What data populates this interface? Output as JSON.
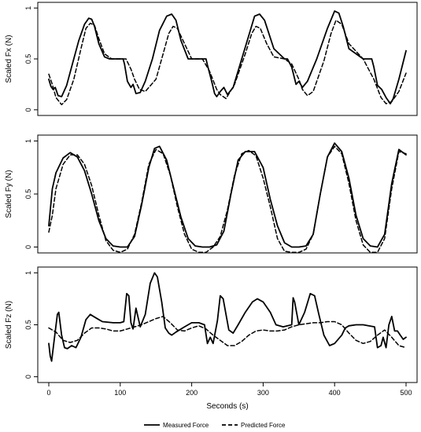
{
  "chart_data": [
    {
      "type": "line",
      "ylabel": "Scaled Fx (N)",
      "xlabel": "",
      "xlim": [
        0,
        500
      ],
      "ylim": [
        0,
        1
      ],
      "yticks": [
        "0",
        "0.5",
        "1"
      ],
      "xticks": [],
      "series": [
        {
          "name": "Measured Force",
          "style": "solid",
          "x": [
            0,
            3,
            6,
            9,
            13,
            18,
            25,
            33,
            42,
            50,
            56,
            60,
            64,
            70,
            78,
            85,
            95,
            104,
            106,
            110,
            115,
            118,
            122,
            128,
            135,
            145,
            155,
            165,
            172,
            178,
            185,
            195,
            210,
            220,
            222,
            228,
            232,
            235,
            240,
            245,
            250,
            258,
            270,
            282,
            288,
            295,
            302,
            315,
            330,
            334,
            340,
            346,
            350,
            355,
            362,
            375,
            390,
            400,
            406,
            412,
            420,
            440,
            452,
            455,
            460,
            466,
            472,
            478,
            482,
            490,
            500
          ],
          "y": [
            0.3,
            0.23,
            0.2,
            0.22,
            0.14,
            0.13,
            0.24,
            0.45,
            0.68,
            0.84,
            0.9,
            0.89,
            0.82,
            0.65,
            0.52,
            0.5,
            0.5,
            0.5,
            0.45,
            0.28,
            0.22,
            0.25,
            0.16,
            0.17,
            0.28,
            0.5,
            0.78,
            0.92,
            0.94,
            0.88,
            0.68,
            0.5,
            0.5,
            0.5,
            0.44,
            0.28,
            0.16,
            0.13,
            0.18,
            0.22,
            0.15,
            0.22,
            0.5,
            0.78,
            0.92,
            0.94,
            0.88,
            0.6,
            0.5,
            0.5,
            0.42,
            0.25,
            0.28,
            0.22,
            0.28,
            0.5,
            0.8,
            0.97,
            0.95,
            0.82,
            0.6,
            0.5,
            0.5,
            0.42,
            0.24,
            0.2,
            0.12,
            0.06,
            0.11,
            0.3,
            0.58
          ]
        },
        {
          "name": "Predicted Force",
          "style": "dashed",
          "x": [
            0,
            5,
            10,
            18,
            25,
            35,
            45,
            52,
            58,
            64,
            70,
            78,
            88,
            100,
            108,
            115,
            120,
            127,
            135,
            150,
            160,
            168,
            174,
            180,
            190,
            200,
            215,
            225,
            235,
            240,
            248,
            260,
            275,
            284,
            290,
            296,
            305,
            315,
            330,
            340,
            350,
            355,
            362,
            370,
            385,
            395,
            402,
            410,
            420,
            440,
            455,
            465,
            472,
            480,
            490,
            500
          ],
          "y": [
            0.35,
            0.25,
            0.12,
            0.05,
            0.1,
            0.3,
            0.6,
            0.8,
            0.85,
            0.83,
            0.7,
            0.55,
            0.5,
            0.5,
            0.5,
            0.4,
            0.3,
            0.2,
            0.18,
            0.3,
            0.55,
            0.75,
            0.82,
            0.8,
            0.65,
            0.5,
            0.5,
            0.38,
            0.2,
            0.15,
            0.11,
            0.25,
            0.55,
            0.75,
            0.82,
            0.8,
            0.65,
            0.52,
            0.5,
            0.45,
            0.3,
            0.2,
            0.14,
            0.18,
            0.48,
            0.75,
            0.88,
            0.84,
            0.65,
            0.5,
            0.3,
            0.12,
            0.06,
            0.08,
            0.18,
            0.36
          ]
        }
      ]
    },
    {
      "type": "line",
      "ylabel": "Scaled Fy (N)",
      "xlabel": "",
      "xlim": [
        0,
        500
      ],
      "ylim": [
        0,
        1
      ],
      "yticks": [
        "0",
        "0.5",
        "1"
      ],
      "xticks": [],
      "series": [
        {
          "name": "Measured Force",
          "style": "solid",
          "x": [
            0,
            5,
            10,
            20,
            30,
            40,
            50,
            60,
            70,
            80,
            90,
            100,
            110,
            120,
            130,
            140,
            148,
            155,
            165,
            175,
            185,
            195,
            205,
            215,
            225,
            235,
            245,
            255,
            265,
            275,
            288,
            300,
            310,
            320,
            330,
            340,
            350,
            360,
            370,
            380,
            390,
            400,
            410,
            420,
            430,
            440,
            450,
            460,
            470,
            480,
            490,
            500
          ],
          "y": [
            0.2,
            0.55,
            0.7,
            0.84,
            0.89,
            0.85,
            0.72,
            0.5,
            0.25,
            0.08,
            0.01,
            0,
            0,
            0.1,
            0.4,
            0.75,
            0.93,
            0.95,
            0.82,
            0.55,
            0.28,
            0.08,
            0.01,
            0,
            0,
            0.02,
            0.15,
            0.5,
            0.82,
            0.9,
            0.9,
            0.75,
            0.45,
            0.2,
            0.04,
            0,
            0,
            0.01,
            0.12,
            0.5,
            0.85,
            0.98,
            0.9,
            0.65,
            0.3,
            0.08,
            0.01,
            0,
            0.12,
            0.6,
            0.92,
            0.87
          ]
        },
        {
          "name": "Predicted Force",
          "style": "dashed",
          "x": [
            0,
            5,
            10,
            20,
            30,
            40,
            50,
            60,
            70,
            80,
            90,
            100,
            110,
            120,
            130,
            140,
            150,
            160,
            170,
            180,
            190,
            200,
            210,
            220,
            230,
            240,
            250,
            260,
            270,
            280,
            290,
            300,
            310,
            320,
            330,
            340,
            350,
            360,
            370,
            380,
            390,
            400,
            410,
            420,
            430,
            440,
            450,
            460,
            470,
            480,
            490,
            500
          ],
          "y": [
            0.14,
            0.3,
            0.55,
            0.78,
            0.87,
            0.87,
            0.78,
            0.58,
            0.3,
            0.06,
            -0.03,
            -0.05,
            -0.02,
            0.12,
            0.42,
            0.78,
            0.92,
            0.88,
            0.68,
            0.38,
            0.12,
            -0.02,
            -0.05,
            -0.05,
            0.0,
            0.1,
            0.35,
            0.68,
            0.88,
            0.91,
            0.86,
            0.65,
            0.38,
            0.08,
            -0.04,
            -0.05,
            -0.05,
            -0.02,
            0.12,
            0.5,
            0.85,
            0.95,
            0.88,
            0.6,
            0.25,
            0.02,
            -0.05,
            -0.05,
            0.08,
            0.55,
            0.9,
            0.88
          ]
        }
      ]
    },
    {
      "type": "line",
      "ylabel": "Scaled Fz (N)",
      "xlabel": "Seconds (s)",
      "xlim": [
        0,
        500
      ],
      "ylim": [
        0,
        1
      ],
      "yticks": [
        "0",
        "0.5",
        "1"
      ],
      "xticks": [
        "0",
        "100",
        "200",
        "300",
        "400",
        "500"
      ],
      "series": [
        {
          "name": "Measured Force",
          "style": "solid",
          "x": [
            0,
            2,
            4,
            8,
            12,
            14,
            18,
            22,
            26,
            32,
            38,
            45,
            52,
            58,
            65,
            75,
            90,
            100,
            105,
            109,
            112,
            115,
            118,
            122,
            128,
            135,
            142,
            148,
            152,
            158,
            163,
            168,
            172,
            178,
            190,
            200,
            210,
            218,
            222,
            226,
            230,
            236,
            240,
            244,
            248,
            252,
            258,
            265,
            275,
            285,
            292,
            300,
            310,
            318,
            328,
            340,
            342,
            344,
            350,
            358,
            366,
            372,
            378,
            385,
            393,
            400,
            410,
            415,
            420,
            430,
            440,
            456,
            460,
            465,
            468,
            472,
            476,
            480,
            484,
            488,
            492,
            496,
            500
          ],
          "y": [
            0.32,
            0.2,
            0.15,
            0.38,
            0.6,
            0.62,
            0.4,
            0.28,
            0.27,
            0.3,
            0.28,
            0.38,
            0.55,
            0.6,
            0.57,
            0.53,
            0.52,
            0.52,
            0.53,
            0.8,
            0.78,
            0.52,
            0.46,
            0.66,
            0.48,
            0.6,
            0.9,
            1.0,
            0.96,
            0.72,
            0.47,
            0.42,
            0.4,
            0.43,
            0.48,
            0.52,
            0.52,
            0.5,
            0.32,
            0.38,
            0.32,
            0.54,
            0.78,
            0.75,
            0.6,
            0.45,
            0.42,
            0.5,
            0.62,
            0.72,
            0.75,
            0.72,
            0.62,
            0.5,
            0.48,
            0.5,
            0.76,
            0.72,
            0.5,
            0.62,
            0.8,
            0.78,
            0.6,
            0.4,
            0.3,
            0.32,
            0.4,
            0.47,
            0.49,
            0.5,
            0.5,
            0.48,
            0.28,
            0.3,
            0.38,
            0.28,
            0.5,
            0.58,
            0.44,
            0.44,
            0.4,
            0.36,
            0.38
          ]
        },
        {
          "name": "Predicted Force",
          "style": "dashed",
          "x": [
            0,
            10,
            20,
            30,
            40,
            50,
            60,
            70,
            80,
            90,
            100,
            110,
            120,
            130,
            140,
            150,
            160,
            170,
            180,
            190,
            200,
            210,
            220,
            230,
            240,
            250,
            260,
            270,
            280,
            290,
            300,
            310,
            320,
            330,
            340,
            350,
            360,
            370,
            380,
            390,
            400,
            410,
            420,
            430,
            440,
            450,
            460,
            470,
            480,
            490,
            500
          ],
          "y": [
            0.47,
            0.43,
            0.35,
            0.33,
            0.35,
            0.42,
            0.47,
            0.47,
            0.46,
            0.44,
            0.44,
            0.46,
            0.48,
            0.5,
            0.53,
            0.56,
            0.58,
            0.52,
            0.45,
            0.44,
            0.47,
            0.49,
            0.46,
            0.4,
            0.35,
            0.3,
            0.3,
            0.34,
            0.4,
            0.44,
            0.45,
            0.44,
            0.44,
            0.45,
            0.48,
            0.5,
            0.51,
            0.52,
            0.52,
            0.53,
            0.53,
            0.5,
            0.42,
            0.35,
            0.32,
            0.34,
            0.4,
            0.45,
            0.38,
            0.3,
            0.28
          ]
        }
      ]
    }
  ],
  "legend": [
    {
      "name": "Measured Force",
      "style": "solid"
    },
    {
      "name": "Predicted Force",
      "style": "dashed"
    }
  ]
}
